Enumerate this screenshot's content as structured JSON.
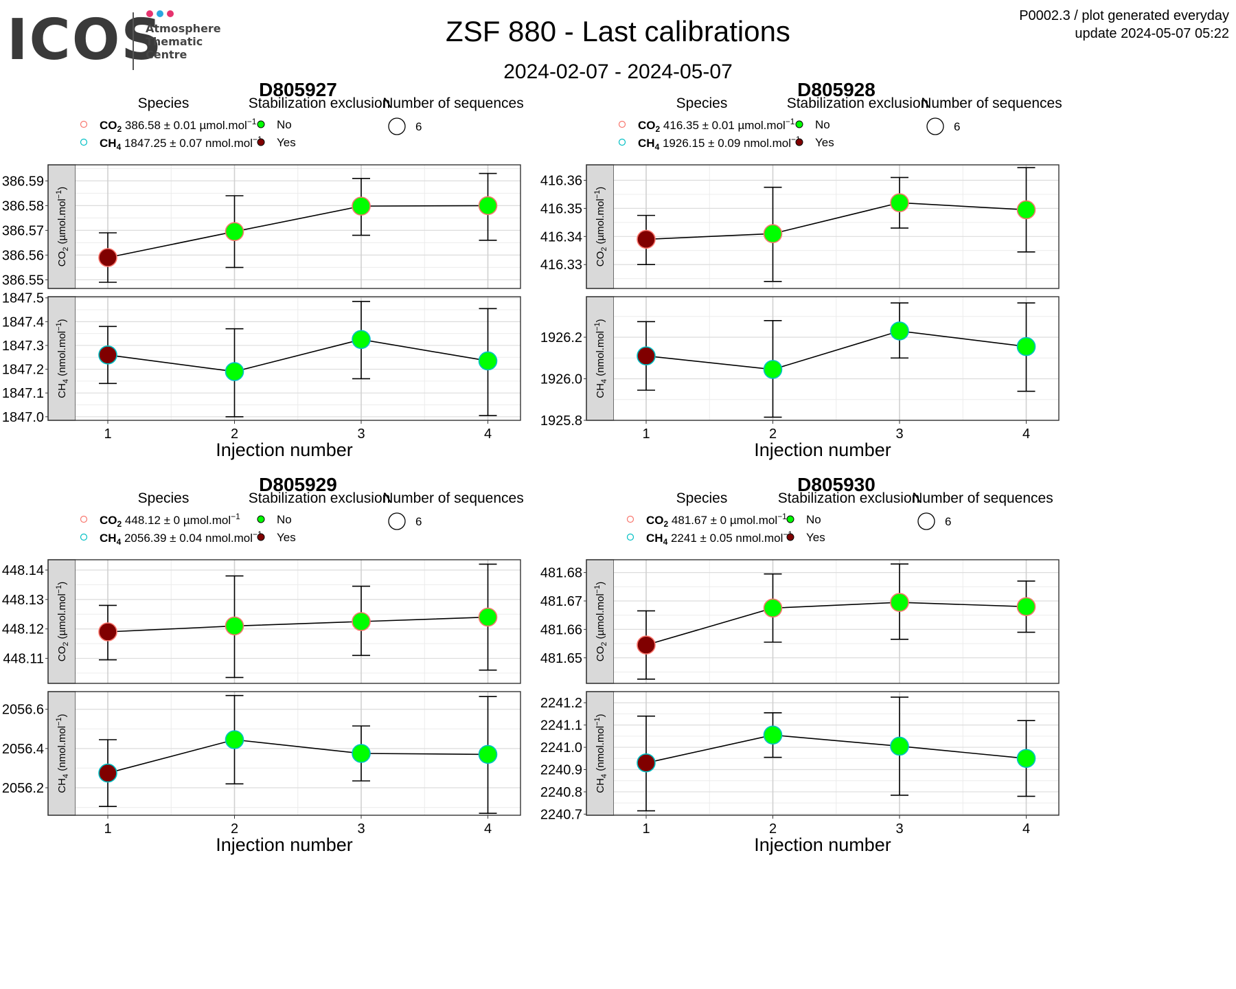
{
  "logo": {
    "name": "ICOS",
    "lines": [
      "Atmosphere",
      "Thematic",
      "Centre"
    ],
    "dot_colors": [
      "#e6336e",
      "#2aa7e0",
      "#e6336e"
    ]
  },
  "header": {
    "title": "ZSF 880 - Last calibrations",
    "date_range": "2024-02-07 - 2024-05-07",
    "note_line1": "P0002.3 / plot generated everyday",
    "note_line2": "update  2024-05-07 05:22"
  },
  "legend_titles": {
    "species": "Species",
    "stabilization": "Stabilization exclusion",
    "sequences": "Number of sequences"
  },
  "legend_labels": {
    "no": "No",
    "yes": "Yes",
    "sequences_value": "6"
  },
  "colors": {
    "no": "#00ff00",
    "yes": "#800000",
    "co2": "#f8766d",
    "ch4": "#00bfc4",
    "strip": "#d9d9d9"
  },
  "chart_data": [
    {
      "type": "scatter",
      "title": "D805927",
      "xlabel": "Injection number",
      "x": [
        1,
        2,
        3,
        4
      ],
      "series": [
        {
          "name": "CO2",
          "strip_label": "CO2 (µmol.mol-1)",
          "legend_value": "386.58 ± 0.01 µmol.mol-1",
          "y": [
            386.559,
            386.5695,
            386.5798,
            386.58
          ],
          "err_low": [
            386.549,
            386.555,
            386.568,
            386.566
          ],
          "err_high": [
            386.569,
            386.584,
            386.591,
            386.593
          ],
          "exclusion": [
            "Yes",
            "No",
            "No",
            "No"
          ],
          "ylim": [
            386.5465,
            386.5965
          ],
          "ticks": [
            386.55,
            386.56,
            386.57,
            386.58,
            386.59
          ],
          "tick_labels": [
            "386.55",
            "386.56",
            "386.57",
            "386.58",
            "386.59"
          ]
        },
        {
          "name": "CH4",
          "strip_label": "CH4 (nmol.mol-1)",
          "legend_value": "1847.25 ± 0.07 nmol.mol-1",
          "y": [
            1847.26,
            1847.19,
            1847.325,
            1847.235
          ],
          "err_low": [
            1847.14,
            1847.0,
            1847.16,
            1847.005
          ],
          "err_high": [
            1847.38,
            1847.37,
            1847.485,
            1847.455
          ],
          "exclusion": [
            "Yes",
            "No",
            "No",
            "No"
          ],
          "ylim": [
            1846.985,
            1847.505
          ],
          "ticks": [
            1847.0,
            1847.1,
            1847.2,
            1847.3,
            1847.4,
            1847.5
          ],
          "tick_labels": [
            "1847.0",
            "1847.1",
            "1847.2",
            "1847.3",
            "1847.4",
            "1847.5"
          ]
        }
      ]
    },
    {
      "type": "scatter",
      "title": "D805928",
      "xlabel": "Injection number",
      "x": [
        1,
        2,
        3,
        4
      ],
      "series": [
        {
          "name": "CO2",
          "strip_label": "CO2 (µmol.mol-1)",
          "legend_value": "416.35 ± 0.01 µmol.mol-1",
          "y": [
            416.339,
            416.341,
            416.352,
            416.3495
          ],
          "err_low": [
            416.33,
            416.324,
            416.343,
            416.3345
          ],
          "err_high": [
            416.3475,
            416.3575,
            416.361,
            416.3645
          ],
          "exclusion": [
            "Yes",
            "No",
            "No",
            "No"
          ],
          "ylim": [
            416.3215,
            416.3655
          ],
          "ticks": [
            416.33,
            416.34,
            416.35,
            416.36
          ],
          "tick_labels": [
            "416.33",
            "416.34",
            "416.35",
            "416.36"
          ]
        },
        {
          "name": "CH4",
          "strip_label": "CH4 (nmol.mol-1)",
          "legend_value": "1926.15 ± 0.09 nmol.mol-1",
          "y": [
            1926.11,
            1926.045,
            1926.23,
            1926.155
          ],
          "err_low": [
            1925.945,
            1925.815,
            1926.1,
            1925.94
          ],
          "err_high": [
            1926.275,
            1926.28,
            1926.365,
            1926.365
          ],
          "exclusion": [
            "Yes",
            "No",
            "No",
            "No"
          ],
          "ylim": [
            1925.8,
            1926.395
          ],
          "ticks": [
            1925.8,
            1926.0,
            1926.2
          ],
          "tick_labels": [
            "1925.8",
            "1926.0",
            "1926.2"
          ]
        }
      ]
    },
    {
      "type": "scatter",
      "title": "D805929",
      "xlabel": "Injection number",
      "x": [
        1,
        2,
        3,
        4
      ],
      "series": [
        {
          "name": "CO2",
          "strip_label": "CO2 (µmol.mol-1)",
          "legend_value": "448.12 ± 0 µmol.mol-1",
          "y": [
            448.119,
            448.121,
            448.1225,
            448.124
          ],
          "err_low": [
            448.1095,
            448.1035,
            448.111,
            448.106
          ],
          "err_high": [
            448.128,
            448.138,
            448.1345,
            448.142
          ],
          "exclusion": [
            "Yes",
            "No",
            "No",
            "No"
          ],
          "ylim": [
            448.1015,
            448.1435
          ],
          "ticks": [
            448.11,
            448.12,
            448.13,
            448.14
          ],
          "tick_labels": [
            "448.11",
            "448.12",
            "448.13",
            "448.14"
          ]
        },
        {
          "name": "CH4",
          "strip_label": "CH4 (nmol.mol-1)",
          "legend_value": "2056.39 ± 0.04 nmol.mol-1",
          "y": [
            2056.275,
            2056.445,
            2056.375,
            2056.37
          ],
          "err_low": [
            2056.105,
            2056.22,
            2056.235,
            2056.07
          ],
          "err_high": [
            2056.445,
            2056.67,
            2056.515,
            2056.665
          ],
          "exclusion": [
            "Yes",
            "No",
            "No",
            "No"
          ],
          "ylim": [
            2056.06,
            2056.69
          ],
          "ticks": [
            2056.2,
            2056.4,
            2056.6
          ],
          "tick_labels": [
            "2056.2",
            "2056.4",
            "2056.6"
          ]
        }
      ]
    },
    {
      "type": "scatter",
      "title": "D805930",
      "xlabel": "Injection number",
      "x": [
        1,
        2,
        3,
        4
      ],
      "series": [
        {
          "name": "CO2",
          "strip_label": "CO2 (µmol.mol-1)",
          "legend_value": "481.67 ± 0 µmol.mol-1",
          "y": [
            481.6545,
            481.6675,
            481.6695,
            481.668
          ],
          "err_low": [
            481.6425,
            481.6555,
            481.6565,
            481.659
          ],
          "err_high": [
            481.6665,
            481.6795,
            481.683,
            481.677
          ],
          "exclusion": [
            "Yes",
            "No",
            "No",
            "No"
          ],
          "ylim": [
            481.641,
            481.6845
          ],
          "ticks": [
            481.65,
            481.66,
            481.67,
            481.68
          ],
          "tick_labels": [
            "481.65",
            "481.66",
            "481.67",
            "481.68"
          ]
        },
        {
          "name": "CH4",
          "strip_label": "CH4 (nmol.mol-1)",
          "legend_value": "2241 ± 0.05 nmol.mol-1",
          "y": [
            2240.93,
            2241.055,
            2241.005,
            2240.95
          ],
          "err_low": [
            2240.715,
            2240.955,
            2240.785,
            2240.78
          ],
          "err_high": [
            2241.14,
            2241.155,
            2241.225,
            2241.12
          ],
          "exclusion": [
            "Yes",
            "No",
            "No",
            "No"
          ],
          "ylim": [
            2240.695,
            2241.25
          ],
          "ticks": [
            2240.7,
            2240.8,
            2240.9,
            2241.0,
            2241.1,
            2241.2
          ],
          "tick_labels": [
            "2240.7",
            "2240.8",
            "2240.9",
            "2241.0",
            "2241.1",
            "2241.2"
          ]
        }
      ]
    }
  ]
}
